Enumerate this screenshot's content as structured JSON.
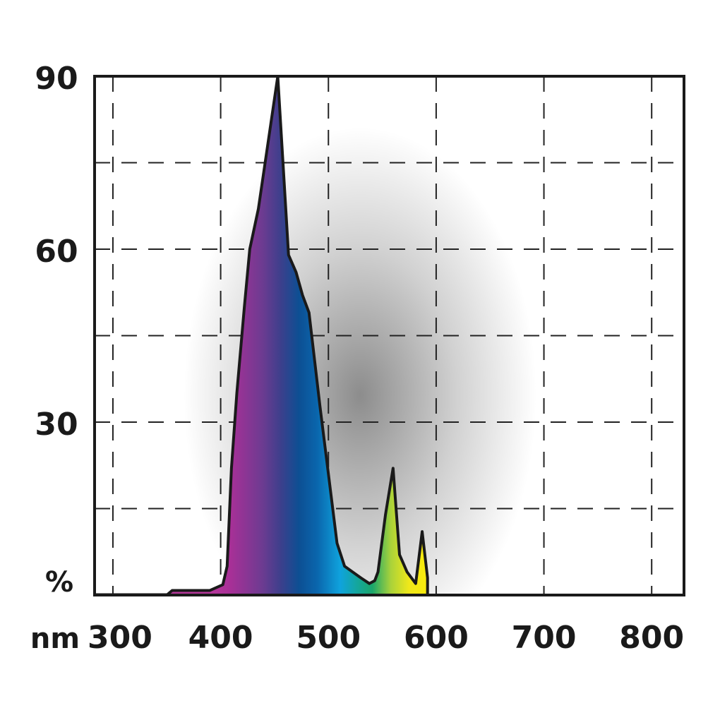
{
  "chart_data": {
    "type": "area",
    "title": "",
    "xlabel": "nm",
    "ylabel": "%",
    "xlim": [
      283,
      830
    ],
    "ylim": [
      0,
      90
    ],
    "x_ticks": [
      "300",
      "400",
      "500",
      "600",
      "700",
      "800"
    ],
    "y_ticks": [
      "30",
      "60",
      "90"
    ],
    "grid": true,
    "legend": "none",
    "series": [
      {
        "x": [
          350,
          355,
          390,
          402,
          406,
          410,
          415,
          422,
          427,
          435,
          453,
          463,
          470,
          476,
          482,
          492,
          502,
          508,
          515,
          530,
          538,
          543,
          546,
          553,
          560,
          566,
          573,
          581,
          587,
          592,
          592
        ],
        "y": [
          0,
          0.8,
          0.8,
          1.8,
          5,
          22,
          35,
          50,
          60,
          67,
          90,
          59,
          56,
          52,
          49,
          33,
          18,
          9,
          5,
          3,
          2,
          2.5,
          4,
          14,
          22,
          7,
          4,
          2,
          11,
          3,
          0
        ]
      }
    ],
    "colors": {
      "violet": "#a83097",
      "indigo": "#3d3f8c",
      "blue": "#0d4f93",
      "cyan": "#0fa3dd",
      "green": "#1aa66b",
      "yellow": "#f5ea1a"
    }
  }
}
